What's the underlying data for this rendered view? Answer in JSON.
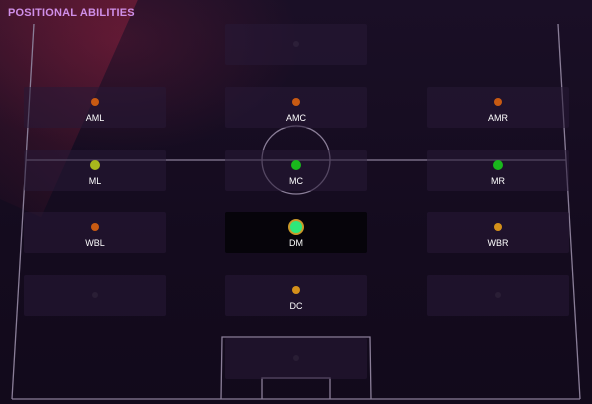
{
  "panel": {
    "title": "POSITIONAL ABILITIES"
  },
  "positions": [
    {
      "key": "aml",
      "label": "AML",
      "color": "#c85a12"
    },
    {
      "key": "amc",
      "label": "AMC",
      "color": "#c85a12"
    },
    {
      "key": "amr",
      "label": "AMR",
      "color": "#c85a12"
    },
    {
      "key": "ml",
      "label": "ML",
      "color": "#a8b81c"
    },
    {
      "key": "mc",
      "label": "MC",
      "color": "#19b81c"
    },
    {
      "key": "mr",
      "label": "MR",
      "color": "#19b81c"
    },
    {
      "key": "wbl",
      "label": "WBL",
      "color": "#c85a12"
    },
    {
      "key": "dm",
      "label": "DM",
      "color": "#2ee87a",
      "ring": "#c99a2a",
      "selected": true
    },
    {
      "key": "wbr",
      "label": "WBR",
      "color": "#d4901a"
    },
    {
      "key": "dc",
      "label": "DC",
      "color": "#d4901a"
    }
  ]
}
